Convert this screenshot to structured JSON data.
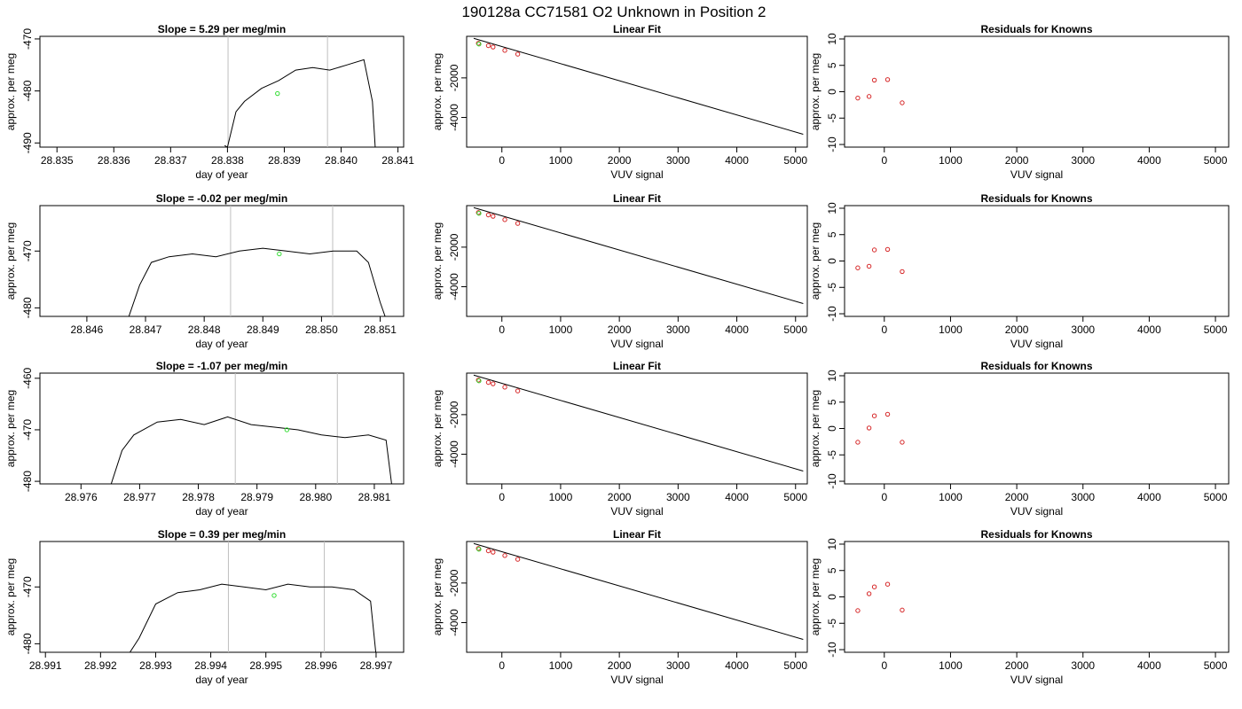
{
  "title": "190128a      CC71581   O2 Unknown in Position  2",
  "chart_data": [
    {
      "row": 1,
      "time_panel": {
        "type": "line",
        "title": "Slope =  5.29  per meg/min",
        "xlabel": "day of year",
        "ylabel": "approx. per meg",
        "xlim": [
          28.8347,
          28.8411
        ],
        "ylim": [
          -490.8,
          -469.5
        ],
        "xticks": [
          "28.835",
          "28.836",
          "28.837",
          "28.838",
          "28.839",
          "28.840",
          "28.841"
        ],
        "yticks": [
          "-470",
          "-480",
          "-490"
        ],
        "vlines": [
          28.83801,
          28.83976
        ],
        "series": [
          {
            "x": [
              28.83795,
              28.838,
              28.83815,
              28.8383,
              28.8386,
              28.8389,
              28.8392,
              28.8395,
              28.8398,
              28.8401,
              28.8404,
              28.84055,
              28.8406
            ],
            "y": [
              -490.5,
              -490.8,
              -484,
              -482,
              -479.5,
              -478,
              -476,
              -475.5,
              -476,
              -475,
              -474,
              -482,
              -491
            ]
          }
        ],
        "marker": {
          "x": 28.83888,
          "y": -480.5,
          "color": "#33dd33"
        }
      },
      "fit_panel": {
        "type": "line",
        "title": "Linear Fit",
        "xlabel": "VUV signal",
        "ylabel": "approx. per meg",
        "xlim": [
          -600,
          5200
        ],
        "ylim": [
          -5500,
          100
        ],
        "xticks": [
          "0",
          "1000",
          "2000",
          "3000",
          "4000",
          "5000"
        ],
        "yticks": [
          "-2000",
          "-4000"
        ],
        "fit_line": {
          "x": [
            -480,
            5130
          ],
          "y": [
            0,
            -4850
          ]
        },
        "points": {
          "x": [
            -400,
            -230,
            -150,
            50,
            270
          ],
          "y": [
            -250,
            -370,
            -440,
            -610,
            -800
          ]
        },
        "unknown": {
          "x": -390,
          "y": -290
        }
      },
      "resid_panel": {
        "type": "scatter",
        "title": "Residuals for Knowns",
        "xlabel": "VUV signal",
        "ylabel": "approx. per meg",
        "xlim": [
          -600,
          5200
        ],
        "ylim": [
          -10.5,
          10.5
        ],
        "xticks": [
          "0",
          "1000",
          "2000",
          "3000",
          "4000",
          "5000"
        ],
        "yticks": [
          "10",
          "5",
          "0",
          "-5",
          "-10"
        ],
        "points": {
          "x": [
            -400,
            -230,
            -150,
            50,
            270
          ],
          "y": [
            -1.2,
            -0.9,
            2.2,
            2.3,
            -2.1
          ]
        }
      }
    },
    {
      "row": 2,
      "time_panel": {
        "type": "line",
        "title": "Slope =  -0.02  per meg/min",
        "xlabel": "day of year",
        "ylabel": "approx. per meg",
        "xlim": [
          28.8452,
          28.8514
        ],
        "ylim": [
          -481.5,
          -462
        ],
        "xticks": [
          "28.846",
          "28.847",
          "28.848",
          "28.849",
          "28.850",
          "28.851"
        ],
        "yticks": [
          "-470",
          "-480"
        ],
        "vlines": [
          28.84845,
          28.85019
        ],
        "series": [
          {
            "x": [
              28.8467,
              28.8469,
              28.8471,
              28.8474,
              28.8478,
              28.8482,
              28.8486,
              28.849,
              28.8494,
              28.8498,
              28.8502,
              28.8506,
              28.8508,
              28.851,
              28.8511
            ],
            "y": [
              -482,
              -476,
              -472,
              -471,
              -470.5,
              -471,
              -470,
              -469.5,
              -470,
              -470.5,
              -470,
              -470,
              -472,
              -479,
              -482
            ]
          }
        ],
        "marker": {
          "x": 28.84928,
          "y": -470.5,
          "color": "#33dd33"
        }
      },
      "fit_panel": {
        "type": "line",
        "title": "Linear Fit",
        "xlabel": "VUV signal",
        "ylabel": "approx. per meg",
        "xlim": [
          -600,
          5200
        ],
        "ylim": [
          -5500,
          100
        ],
        "xticks": [
          "0",
          "1000",
          "2000",
          "3000",
          "4000",
          "5000"
        ],
        "yticks": [
          "-2000",
          "-4000"
        ],
        "fit_line": {
          "x": [
            -480,
            5130
          ],
          "y": [
            0,
            -4850
          ]
        },
        "points": {
          "x": [
            -400,
            -230,
            -150,
            50,
            270
          ],
          "y": [
            -250,
            -370,
            -440,
            -610,
            -800
          ]
        },
        "unknown": {
          "x": -390,
          "y": -290
        }
      },
      "resid_panel": {
        "type": "scatter",
        "title": "Residuals for Knowns",
        "xlabel": "VUV signal",
        "ylabel": "approx. per meg",
        "xlim": [
          -600,
          5200
        ],
        "ylim": [
          -10.5,
          10.5
        ],
        "xticks": [
          "0",
          "1000",
          "2000",
          "3000",
          "4000",
          "5000"
        ],
        "yticks": [
          "10",
          "5",
          "0",
          "-5",
          "-10"
        ],
        "points": {
          "x": [
            -400,
            -230,
            -150,
            50,
            270
          ],
          "y": [
            -1.3,
            -1.0,
            2.1,
            2.2,
            -2.0
          ]
        }
      }
    },
    {
      "row": 3,
      "time_panel": {
        "type": "line",
        "title": "Slope =  -1.07  per meg/min",
        "xlabel": "day of year",
        "ylabel": "approx. per meg",
        "xlim": [
          28.9753,
          28.9815
        ],
        "ylim": [
          -480.5,
          -459
        ],
        "xticks": [
          "28.976",
          "28.977",
          "28.978",
          "28.979",
          "28.980",
          "28.981"
        ],
        "yticks": [
          "-460",
          "-470",
          "-480"
        ],
        "vlines": [
          28.97863,
          28.98037
        ],
        "series": [
          {
            "x": [
              28.9765,
              28.9767,
              28.9769,
              28.9773,
              28.9777,
              28.9781,
              28.9785,
              28.9789,
              28.9793,
              28.9797,
              28.9801,
              28.9805,
              28.9809,
              28.9812,
              28.9813
            ],
            "y": [
              -481,
              -474,
              -471,
              -468.5,
              -468,
              -469,
              -467.5,
              -469,
              -469.5,
              -470,
              -471,
              -471.5,
              -471,
              -472,
              -481
            ]
          }
        ],
        "marker": {
          "x": 28.97951,
          "y": -470,
          "color": "#33dd33"
        }
      },
      "fit_panel": {
        "type": "line",
        "title": "Linear Fit",
        "xlabel": "VUV signal",
        "ylabel": "approx. per meg",
        "xlim": [
          -600,
          5200
        ],
        "ylim": [
          -5500,
          100
        ],
        "xticks": [
          "0",
          "1000",
          "2000",
          "3000",
          "4000",
          "5000"
        ],
        "yticks": [
          "-2000",
          "-4000"
        ],
        "fit_line": {
          "x": [
            -480,
            5130
          ],
          "y": [
            0,
            -4850
          ]
        },
        "points": {
          "x": [
            -400,
            -230,
            -150,
            50,
            270
          ],
          "y": [
            -250,
            -370,
            -440,
            -610,
            -800
          ]
        },
        "unknown": {
          "x": -390,
          "y": -290
        }
      },
      "resid_panel": {
        "type": "scatter",
        "title": "Residuals for Knowns",
        "xlabel": "VUV signal",
        "ylabel": "approx. per meg",
        "xlim": [
          -600,
          5200
        ],
        "ylim": [
          -10.5,
          10.5
        ],
        "xticks": [
          "0",
          "1000",
          "2000",
          "3000",
          "4000",
          "5000"
        ],
        "yticks": [
          "10",
          "5",
          "0",
          "-5",
          "-10"
        ],
        "points": {
          "x": [
            -400,
            -230,
            -150,
            50,
            270
          ],
          "y": [
            -2.6,
            0.1,
            2.4,
            2.7,
            -2.6
          ]
        }
      }
    },
    {
      "row": 4,
      "time_panel": {
        "type": "line",
        "title": "Slope =  0.39  per meg/min",
        "xlabel": "day of year",
        "ylabel": "approx. per meg",
        "xlim": [
          28.9909,
          28.9975
        ],
        "ylim": [
          -481.5,
          -462
        ],
        "xticks": [
          "28.991",
          "28.992",
          "28.993",
          "28.994",
          "28.995",
          "28.996",
          "28.997"
        ],
        "yticks": [
          "-470",
          "-480"
        ],
        "vlines": [
          28.99432,
          28.99606
        ],
        "series": [
          {
            "x": [
              28.9925,
              28.9927,
              28.993,
              28.9934,
              28.9938,
              28.9942,
              28.9946,
              28.995,
              28.9954,
              28.9958,
              28.9962,
              28.9966,
              28.9969,
              28.997
            ],
            "y": [
              -482,
              -479,
              -473,
              -471,
              -470.5,
              -469.5,
              -470,
              -470.5,
              -469.5,
              -470,
              -470,
              -470.5,
              -472.5,
              -482
            ]
          }
        ],
        "marker": {
          "x": 28.99515,
          "y": -471.5,
          "color": "#33dd33"
        }
      },
      "fit_panel": {
        "type": "line",
        "title": "Linear Fit",
        "xlabel": "VUV signal",
        "ylabel": "approx. per meg",
        "xlim": [
          -600,
          5200
        ],
        "ylim": [
          -5500,
          100
        ],
        "xticks": [
          "0",
          "1000",
          "2000",
          "3000",
          "4000",
          "5000"
        ],
        "yticks": [
          "-2000",
          "-4000"
        ],
        "fit_line": {
          "x": [
            -480,
            5130
          ],
          "y": [
            0,
            -4850
          ]
        },
        "points": {
          "x": [
            -400,
            -230,
            -150,
            50,
            270
          ],
          "y": [
            -250,
            -370,
            -440,
            -610,
            -800
          ]
        },
        "unknown": {
          "x": -390,
          "y": -290
        }
      },
      "resid_panel": {
        "type": "scatter",
        "title": "Residuals for Knowns",
        "xlabel": "VUV signal",
        "ylabel": "approx. per meg",
        "xlim": [
          -600,
          5200
        ],
        "ylim": [
          -10.5,
          10.5
        ],
        "xticks": [
          "0",
          "1000",
          "2000",
          "3000",
          "4000",
          "5000"
        ],
        "yticks": [
          "10",
          "5",
          "0",
          "-5",
          "-10"
        ],
        "points": {
          "x": [
            -400,
            -230,
            -150,
            50,
            270
          ],
          "y": [
            -2.6,
            0.6,
            1.9,
            2.4,
            -2.5
          ]
        }
      }
    }
  ]
}
